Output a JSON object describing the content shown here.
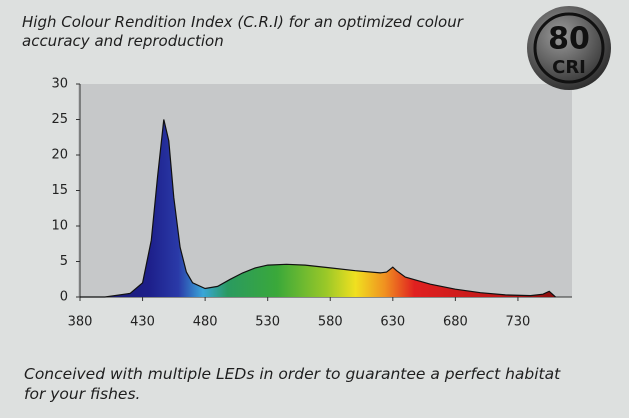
{
  "chart_data": {
    "type": "area",
    "title": "High Colour Rendition Index (C.R.I) for an optimized colour accuracy and reproduction",
    "caption": "Conceived with multiple LEDs in order to guarantee a perfect habitat for your fishes.",
    "annotations": [
      "80",
      "CRI"
    ],
    "x": [
      380,
      400,
      420,
      430,
      437,
      442,
      447,
      451,
      455,
      460,
      465,
      470,
      480,
      490,
      500,
      510,
      520,
      530,
      545,
      560,
      580,
      600,
      620,
      625,
      630,
      633,
      640,
      660,
      680,
      700,
      720,
      740,
      750,
      755,
      760
    ],
    "series": [
      {
        "values": [
          0,
          0,
          0.5,
          2,
          8,
          17,
          25,
          22,
          14,
          7,
          3.5,
          2,
          1.2,
          1.5,
          2.5,
          3.4,
          4.1,
          4.5,
          4.6,
          4.5,
          4.1,
          3.7,
          3.4,
          3.5,
          4.2,
          3.7,
          2.8,
          1.8,
          1.1,
          0.6,
          0.3,
          0.2,
          0.4,
          0.8,
          0
        ]
      }
    ],
    "xlim": [
      380,
      778
    ],
    "ylim": [
      0,
      30
    ],
    "xticks": [
      380,
      430,
      480,
      530,
      580,
      630,
      680,
      730
    ],
    "yticks": [
      0,
      5,
      10,
      15,
      20,
      25,
      30
    ]
  }
}
